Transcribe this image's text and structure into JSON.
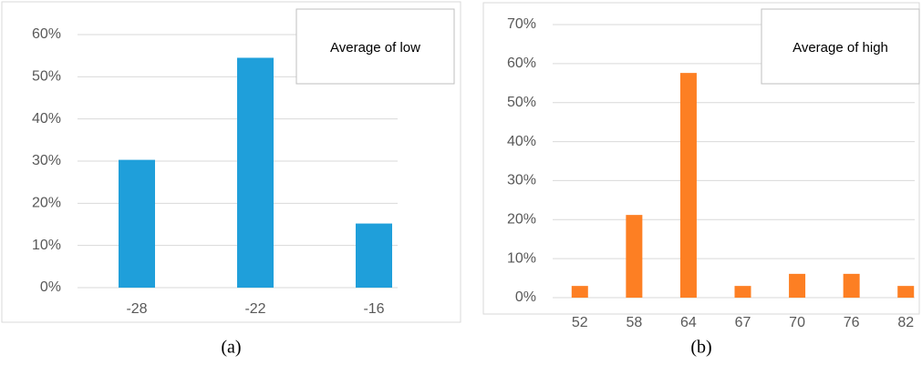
{
  "chart_data": [
    {
      "type": "bar",
      "caption": "(a)",
      "categories": [
        "-28",
        "-22",
        "-16"
      ],
      "series": [
        {
          "name": "Average of low",
          "color": "#1f9fda",
          "values": [
            30.3,
            54.5,
            15.2
          ]
        }
      ],
      "ylim": [
        0,
        60
      ],
      "yticks": [
        {
          "value": 0,
          "label": "0%"
        },
        {
          "value": 10,
          "label": "10%"
        },
        {
          "value": 20,
          "label": "20%"
        },
        {
          "value": 30,
          "label": "30%"
        },
        {
          "value": 40,
          "label": "40%"
        },
        {
          "value": 50,
          "label": "50%"
        },
        {
          "value": 60,
          "label": "60%"
        }
      ],
      "grid": true,
      "legend": "top-right"
    },
    {
      "type": "bar",
      "caption": "(b)",
      "categories": [
        "52",
        "58",
        "64",
        "67",
        "70",
        "76",
        "82"
      ],
      "series": [
        {
          "name": "Average of high",
          "color": "#fd7f23",
          "values": [
            3,
            21.2,
            57.6,
            3,
            6.1,
            6.1,
            3
          ]
        }
      ],
      "ylim": [
        0,
        70
      ],
      "yticks": [
        {
          "value": 0,
          "label": "0%"
        },
        {
          "value": 10,
          "label": "10%"
        },
        {
          "value": 20,
          "label": "20%"
        },
        {
          "value": 30,
          "label": "30%"
        },
        {
          "value": 40,
          "label": "40%"
        },
        {
          "value": 50,
          "label": "50%"
        },
        {
          "value": 60,
          "label": "60%"
        },
        {
          "value": 70,
          "label": "70%"
        }
      ],
      "grid": true,
      "legend": "top-right"
    }
  ]
}
